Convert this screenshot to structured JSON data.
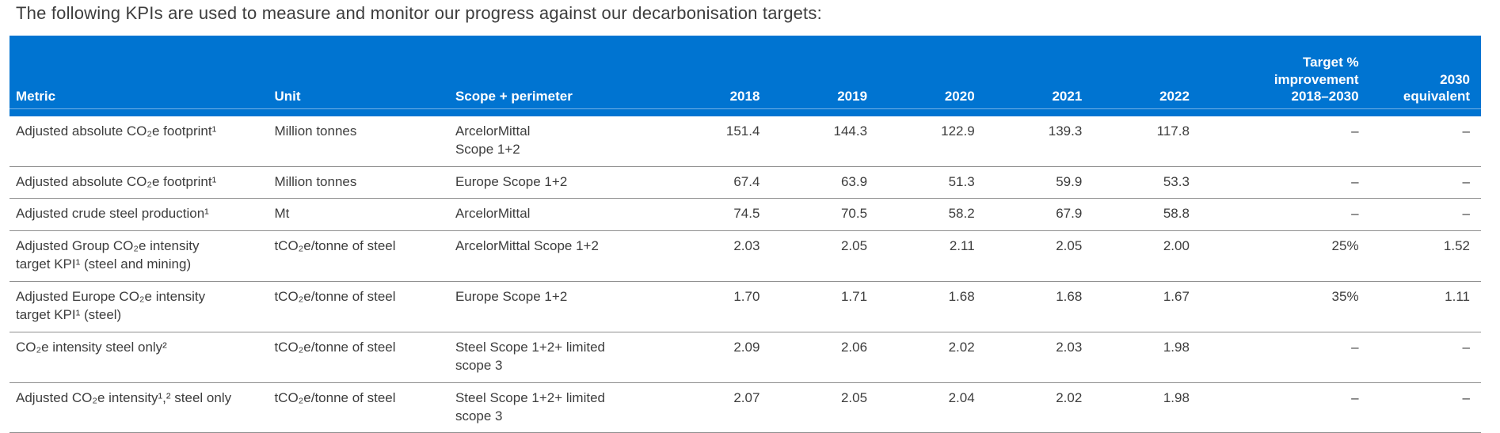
{
  "title": "The following KPIs are used to measure and monitor our progress against our decarbonisation targets:",
  "colors": {
    "header_bg": "#0074d1",
    "header_text": "#ffffff",
    "body_text": "#3d3d3d",
    "row_line": "#8e8e8e"
  },
  "table": {
    "columns": [
      "Metric",
      "Unit",
      "Scope + perimeter",
      "2018",
      "2019",
      "2020",
      "2021",
      "2022",
      "Target %\nimprovement\n2018–2030",
      "2030\nequivalent"
    ],
    "rows": [
      [
        "Adjusted absolute CO₂e footprint¹",
        "Million tonnes",
        "ArcelorMittal\nScope 1+2",
        "151.4",
        "144.3",
        "122.9",
        "139.3",
        "117.8",
        "–",
        "–"
      ],
      [
        "Adjusted absolute CO₂e footprint¹",
        "Million tonnes",
        "Europe Scope 1+2",
        "67.4",
        "63.9",
        "51.3",
        "59.9",
        "53.3",
        "–",
        "–"
      ],
      [
        "Adjusted crude steel production¹",
        "Mt",
        "ArcelorMittal",
        "74.5",
        "70.5",
        "58.2",
        "67.9",
        "58.8",
        "–",
        "–"
      ],
      [
        "Adjusted Group CO₂e intensity\ntarget KPI¹ (steel and mining)",
        "tCO₂e/tonne of steel",
        "ArcelorMittal Scope 1+2",
        "2.03",
        "2.05",
        "2.11",
        "2.05",
        "2.00",
        "25%",
        "1.52"
      ],
      [
        "Adjusted Europe CO₂e intensity\ntarget KPI¹ (steel)",
        "tCO₂e/tonne of steel",
        "Europe Scope 1+2",
        "1.70",
        "1.71",
        "1.68",
        "1.68",
        "1.67",
        "35%",
        "1.11"
      ],
      [
        "CO₂e intensity steel only²",
        "tCO₂e/tonne of steel",
        "Steel Scope 1+2+ limited\nscope 3",
        "2.09",
        "2.06",
        "2.02",
        "2.03",
        "1.98",
        "–",
        "–"
      ],
      [
        "Adjusted CO₂e intensity¹,² steel only",
        "tCO₂e/tonne of steel",
        "Steel Scope 1+2+ limited\nscope 3",
        "2.07",
        "2.05",
        "2.04",
        "2.02",
        "1.98",
        "–",
        "–"
      ]
    ]
  }
}
